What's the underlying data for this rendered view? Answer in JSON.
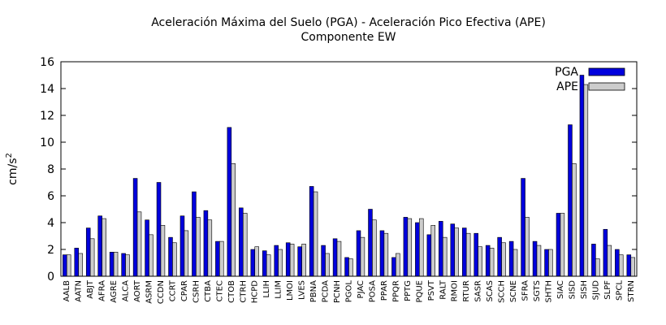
{
  "chart_data": {
    "type": "bar",
    "title": "Aceleración Máxima del Suelo (PGA) -  Aceleración Pico Efectiva (APE)",
    "subtitle": "Componente EW",
    "xlabel": "",
    "ylabel": "cm/s",
    "ylabel_superscript": "2",
    "ylim": [
      0,
      16
    ],
    "yticks": [
      0,
      2,
      4,
      6,
      8,
      10,
      12,
      14,
      16
    ],
    "grid": false,
    "legend_position": "top-right",
    "categories": [
      "AALB",
      "AATN",
      "ABJT",
      "AFRA",
      "AGRE",
      "ALCA",
      "AORT",
      "ASRM",
      "CCDN",
      "CCRT",
      "CPAR",
      "CSRH",
      "CTBA",
      "CTEC",
      "CTOB",
      "CTRH",
      "HCPD",
      "LLIH",
      "LLIM",
      "LMOI",
      "LVES",
      "PBNA",
      "PCDA",
      "PCNH",
      "PGOL",
      "PJAC",
      "POSA",
      "PPAR",
      "PPQR",
      "PPTG",
      "PQUE",
      "PSVT",
      "RALT",
      "RMOI",
      "RTUR",
      "SASR",
      "SCAS",
      "SCCH",
      "SCNE",
      "SFRA",
      "SGTS",
      "SHTH",
      "SIAC",
      "SISD",
      "SISH",
      "SJUD",
      "SLPF",
      "SPCL",
      "STRN"
    ],
    "series": [
      {
        "name": "PGA",
        "color": "#0000dd",
        "values": [
          1.6,
          2.1,
          3.6,
          4.5,
          1.8,
          1.7,
          7.3,
          4.2,
          7.0,
          2.9,
          4.5,
          6.3,
          4.9,
          2.6,
          11.1,
          5.1,
          2.0,
          1.9,
          2.3,
          2.5,
          2.2,
          6.7,
          2.3,
          2.8,
          1.4,
          3.4,
          5.0,
          3.4,
          1.4,
          4.4,
          4.0,
          3.1,
          4.1,
          3.9,
          3.6,
          3.2,
          2.3,
          2.9,
          2.6,
          7.3,
          2.6,
          2.0,
          4.7,
          11.3,
          15.0,
          2.4,
          3.5,
          2.0,
          1.6
        ]
      },
      {
        "name": "APE",
        "color": "#cccccc",
        "values": [
          1.6,
          1.7,
          2.8,
          4.3,
          1.8,
          1.6,
          4.8,
          3.1,
          3.8,
          2.5,
          3.4,
          4.4,
          4.2,
          2.6,
          8.4,
          4.7,
          2.2,
          1.6,
          2.0,
          2.4,
          2.4,
          6.3,
          1.7,
          2.6,
          1.3,
          2.9,
          4.2,
          3.2,
          1.7,
          4.3,
          4.3,
          3.8,
          2.9,
          3.6,
          3.2,
          2.2,
          2.1,
          2.5,
          2.0,
          4.4,
          2.3,
          2.0,
          4.7,
          8.4,
          14.3,
          1.3,
          2.3,
          1.6,
          1.4
        ]
      }
    ]
  }
}
